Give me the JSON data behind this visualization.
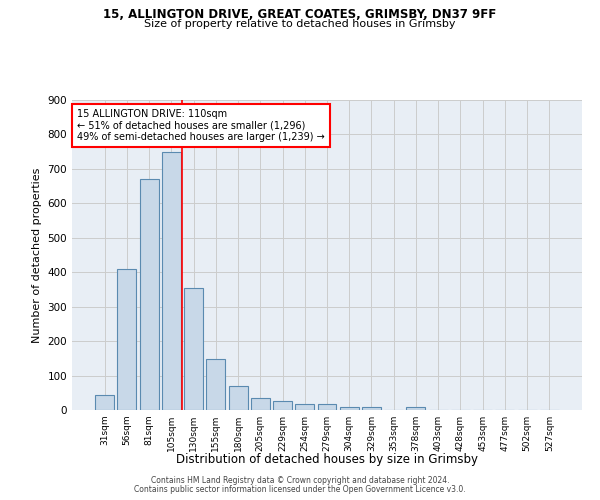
{
  "title1": "15, ALLINGTON DRIVE, GREAT COATES, GRIMSBY, DN37 9FF",
  "title2": "Size of property relative to detached houses in Grimsby",
  "xlabel": "Distribution of detached houses by size in Grimsby",
  "ylabel": "Number of detached properties",
  "categories": [
    "31sqm",
    "56sqm",
    "81sqm",
    "105sqm",
    "130sqm",
    "155sqm",
    "180sqm",
    "205sqm",
    "229sqm",
    "254sqm",
    "279sqm",
    "304sqm",
    "329sqm",
    "353sqm",
    "378sqm",
    "403sqm",
    "428sqm",
    "453sqm",
    "477sqm",
    "502sqm",
    "527sqm"
  ],
  "values": [
    45,
    410,
    670,
    750,
    355,
    148,
    70,
    35,
    27,
    18,
    18,
    10,
    10,
    0,
    8,
    0,
    0,
    0,
    0,
    0,
    0
  ],
  "bar_color": "#c8d8e8",
  "bar_edge_color": "#5a8ab0",
  "red_line_x": 3.5,
  "annotation_text": "15 ALLINGTON DRIVE: 110sqm\n← 51% of detached houses are smaller (1,296)\n49% of semi-detached houses are larger (1,239) →",
  "annotation_box_color": "white",
  "annotation_box_edge_color": "red",
  "grid_color": "#cccccc",
  "background_color": "#e8eef5",
  "footer1": "Contains HM Land Registry data © Crown copyright and database right 2024.",
  "footer2": "Contains public sector information licensed under the Open Government Licence v3.0.",
  "ylim": [
    0,
    900
  ],
  "yticks": [
    0,
    100,
    200,
    300,
    400,
    500,
    600,
    700,
    800,
    900
  ]
}
